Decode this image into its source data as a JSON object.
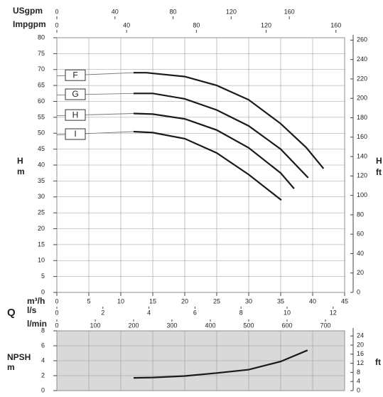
{
  "chart_data": [
    {
      "type": "line",
      "ylabel": [
        "H",
        "m"
      ],
      "y2label": [
        "H",
        "ft"
      ],
      "xlabel": "m³/h",
      "q_label": "Q",
      "xlim": [
        0,
        45
      ],
      "xticks": [
        0,
        5,
        10,
        15,
        20,
        25,
        30,
        35,
        40,
        45
      ],
      "ylim": [
        0,
        80
      ],
      "yticks": [
        0,
        5,
        10,
        15,
        20,
        25,
        30,
        35,
        40,
        45,
        50,
        55,
        60,
        65,
        70,
        75,
        80
      ],
      "y2lim": [
        0,
        262.47
      ],
      "y2ticks": [
        0,
        20,
        40,
        60,
        80,
        100,
        120,
        140,
        160,
        180,
        200,
        220,
        240,
        260
      ],
      "secondary_x_axes": [
        {
          "label": "USgpm",
          "lim": [
            0,
            198.1
          ],
          "ticks": [
            0,
            40,
            80,
            120,
            160
          ]
        },
        {
          "label": "Impgpm",
          "lim": [
            0,
            165
          ],
          "ticks": [
            0,
            40,
            80,
            120,
            160
          ]
        },
        {
          "label": "l/s",
          "lim": [
            0,
            12.5
          ],
          "ticks": [
            0,
            2,
            4,
            6,
            8,
            10,
            12
          ]
        },
        {
          "label": "l/min",
          "lim": [
            0,
            750
          ],
          "ticks": [
            0,
            100,
            200,
            300,
            400,
            500,
            600,
            700
          ]
        }
      ],
      "grid": true,
      "series": [
        {
          "name": "F",
          "color": "#1a1a1a",
          "x": [
            0,
            12,
            14,
            20,
            25,
            30,
            35,
            39,
            41.7
          ],
          "values": [
            68,
            69,
            69,
            67.8,
            65,
            60.5,
            53,
            45.5,
            38.9
          ]
        },
        {
          "name": "G",
          "color": "#1a1a1a",
          "x": [
            0,
            12,
            15,
            20,
            25,
            30,
            35,
            39.3
          ],
          "values": [
            62,
            62.5,
            62.5,
            60.8,
            57.3,
            52.3,
            45,
            36
          ]
        },
        {
          "name": "H",
          "color": "#1a1a1a",
          "x": [
            0,
            12,
            15,
            20,
            25,
            30,
            35,
            37.1
          ],
          "values": [
            55.5,
            56.2,
            56,
            54.5,
            51,
            45.4,
            37.5,
            32.6
          ]
        },
        {
          "name": "I",
          "color": "#1a1a1a",
          "x": [
            0,
            12,
            15,
            20,
            25,
            30,
            35.1
          ],
          "values": [
            49.5,
            50.5,
            50.2,
            48.3,
            43.8,
            37,
            29
          ]
        }
      ]
    },
    {
      "type": "line",
      "ylabel": [
        "NPSH",
        "m"
      ],
      "y2label": "ft",
      "xlim": [
        0,
        45
      ],
      "ylim": [
        0,
        8
      ],
      "yticks": [
        0,
        2,
        4,
        6,
        8
      ],
      "y2lim": [
        0,
        26.25
      ],
      "y2ticks": [
        0,
        4,
        8,
        12,
        16,
        20,
        24
      ],
      "background": "#d9d9d9",
      "grid": true,
      "series": [
        {
          "color": "#1a1a1a",
          "x": [
            12,
            15,
            20,
            25,
            30,
            35,
            39.2
          ],
          "values": [
            1.7,
            1.75,
            1.95,
            2.35,
            2.8,
            3.9,
            5.4
          ]
        }
      ]
    }
  ]
}
